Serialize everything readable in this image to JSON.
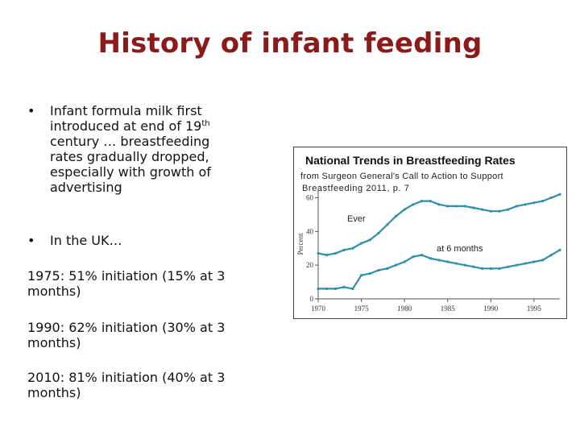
{
  "slide": {
    "title": "History of infant feeding",
    "bullet1_text": "Infant formula milk first introduced at end of 19",
    "bullet1_sup": "th",
    "bullet1_rest": " century … breastfeeding rates gradually dropped, especially with growth of advertising",
    "bullet2_text": "In the UK…",
    "bullet_marker": "•",
    "stat_1975": "1975: 51% initiation (15% at 3 months)",
    "stat_1990": "1990: 62% initiation (30% at 3 months)",
    "stat_2010": "2010: 81% initiation (40% at 3 months)"
  },
  "chart_data": {
    "type": "line",
    "title": "National Trends in Breastfeeding Rates",
    "subtitle_line1": "from Surgeon General's Call to Action to Support",
    "subtitle_line2": "Breastfeeding 2011, p. 7",
    "ylabel": "Percent",
    "xlabel": "",
    "xlim": [
      1970,
      1998
    ],
    "ylim": [
      0,
      65
    ],
    "x_ticks": [
      1970,
      1975,
      1980,
      1985,
      1990,
      1995
    ],
    "x_tick_labels": [
      "1970",
      "1975",
      "1980",
      "1985",
      "1990",
      "1995"
    ],
    "y_ticks": [
      0,
      20,
      40,
      60
    ],
    "y_tick_labels": [
      "0",
      "20",
      "40",
      "60"
    ],
    "grid": false,
    "colors": {
      "line": "#2e8fa8",
      "axis": "#555555"
    },
    "series": [
      {
        "name": "Ever",
        "x": [
          1970,
          1971,
          1972,
          1973,
          1974,
          1975,
          1976,
          1977,
          1978,
          1979,
          1980,
          1981,
          1982,
          1983,
          1984,
          1985,
          1986,
          1987,
          1988,
          1989,
          1990,
          1991,
          1992,
          1993,
          1994,
          1995,
          1996,
          1997,
          1998
        ],
        "values": [
          27,
          26,
          27,
          29,
          30,
          33,
          35,
          39,
          44,
          49,
          53,
          56,
          58,
          58,
          56,
          55,
          55,
          55,
          54,
          53,
          52,
          52,
          53,
          55,
          56,
          57,
          58,
          60,
          62
        ]
      },
      {
        "name": "at 6 months",
        "x": [
          1970,
          1971,
          1972,
          1973,
          1974,
          1975,
          1976,
          1977,
          1978,
          1979,
          1980,
          1981,
          1982,
          1983,
          1984,
          1985,
          1986,
          1987,
          1988,
          1989,
          1990,
          1991,
          1992,
          1993,
          1994,
          1995,
          1996,
          1997,
          1998
        ],
        "values": [
          6,
          6,
          6,
          7,
          6,
          14,
          15,
          17,
          18,
          20,
          22,
          25,
          26,
          24,
          23,
          22,
          21,
          20,
          19,
          18,
          18,
          18,
          19,
          20,
          21,
          22,
          23,
          26,
          29
        ]
      }
    ],
    "annotations": [
      {
        "text": "Ever",
        "series": "Ever"
      },
      {
        "text": "at 6 months",
        "series": "at 6 months"
      }
    ]
  }
}
